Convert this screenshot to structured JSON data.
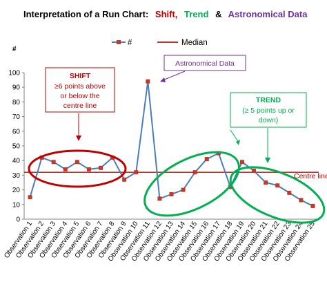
{
  "chart_data": {
    "type": "line",
    "title": {
      "prefix": "Interpretation of a Run Chart:",
      "shift": "Shift,",
      "trend": "Trend",
      "amp": "&",
      "astro": "Astronomical Data"
    },
    "ylabel": "#",
    "ylim": [
      0,
      100
    ],
    "yticks": [
      0,
      10,
      20,
      30,
      40,
      50,
      60,
      70,
      80,
      90,
      100
    ],
    "grid": false,
    "legend_position": "top-center",
    "categories": [
      "Observation 1",
      "Observation 2",
      "Observation 3",
      "Observation 4",
      "Observation 5",
      "Observation 6",
      "Observation 7",
      "Observation 8",
      "Observation 9",
      "Observation 10",
      "Observation 11",
      "Observation 12",
      "Observation 13",
      "Observation 14",
      "Observation 15",
      "Observation 16",
      "Observation 17",
      "Observation 18",
      "Observation 19",
      "Observation 20",
      "Observation 21",
      "Observation 22",
      "Observation 23",
      "Observation 24",
      "Observation 25"
    ],
    "series": [
      {
        "name": "#",
        "values": [
          15,
          42,
          39,
          34,
          39,
          34,
          35,
          42,
          27,
          32,
          94,
          14,
          17,
          20,
          32,
          41,
          45,
          22,
          39,
          33,
          25,
          23,
          18,
          13,
          9
        ],
        "color": "#4a7ebb",
        "marker_color": "#c0392b"
      },
      {
        "name": "Median",
        "values": [
          32,
          32,
          32,
          32,
          32,
          32,
          32,
          32,
          32,
          32,
          32,
          32,
          32,
          32,
          32,
          32,
          32,
          32,
          32,
          32,
          32,
          32,
          32,
          32,
          32
        ],
        "color": "#c0392b"
      }
    ],
    "annotations": {
      "shift": {
        "title": "SHIFT",
        "line1": "≥6 points above",
        "line2": "or below the",
        "line3": "centre line",
        "color": "#c00000"
      },
      "astro": {
        "text": "Astronomical  Data",
        "color": "#7030a0"
      },
      "trend": {
        "title": "TREND",
        "line1": "(≥ 5 points up or",
        "line2": "down)",
        "color": "#00b050"
      },
      "centre_line": {
        "text": "Centre line",
        "color": "#c00000"
      }
    }
  }
}
